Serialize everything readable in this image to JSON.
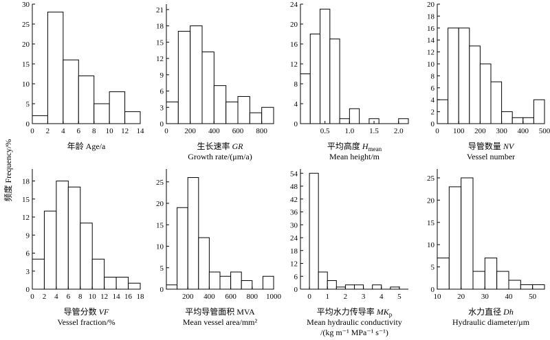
{
  "figure": {
    "y_axis_label": "频度 Frequency/%"
  },
  "chart_data": [
    {
      "type": "bar",
      "label_lines": [
        "年龄 Age/a"
      ],
      "bin_edges": [
        0,
        2,
        4,
        6,
        8,
        10,
        12,
        14
      ],
      "values": [
        2,
        28,
        16,
        12,
        5,
        8,
        3
      ],
      "xlim": [
        0,
        14
      ],
      "xticks": [
        0,
        2,
        4,
        6,
        8,
        10,
        12,
        14
      ],
      "ylim": [
        0,
        30
      ],
      "yticks": [
        0,
        5,
        10,
        15,
        20,
        25,
        30
      ]
    },
    {
      "type": "bar",
      "label_lines": [
        "生长速率 GR",
        "Growth rate/(μm/a)"
      ],
      "bin_edges": [
        0,
        100,
        200,
        300,
        400,
        500,
        600,
        700,
        800,
        900
      ],
      "values": [
        4,
        17,
        18,
        13.2,
        7,
        4,
        5,
        2,
        3
      ],
      "xlim": [
        0,
        900
      ],
      "xticks": [
        0,
        200,
        400,
        600,
        800
      ],
      "ylim": [
        0,
        22
      ],
      "yticks": [
        0,
        3,
        6,
        9,
        12,
        15,
        18,
        21
      ]
    },
    {
      "type": "bar",
      "label_lines": [
        "平均高度 Hmean",
        "Mean height/m"
      ],
      "bin_edges": [
        0,
        0.2,
        0.4,
        0.6,
        0.8,
        1.0,
        1.2,
        1.4,
        1.6,
        1.8,
        2.0,
        2.2
      ],
      "values": [
        10,
        18,
        23,
        17,
        1,
        3,
        0,
        1,
        0,
        0,
        1
      ],
      "xlim": [
        0,
        2.2
      ],
      "xticks": [
        0.5,
        1.0,
        1.5,
        2.0
      ],
      "ylim": [
        0,
        24
      ],
      "yticks": [
        0,
        4,
        8,
        12,
        16,
        20,
        24
      ]
    },
    {
      "type": "bar",
      "label_lines": [
        "导管数量 NV",
        "Vessel number"
      ],
      "bin_edges": [
        0,
        50,
        100,
        150,
        200,
        250,
        300,
        350,
        400,
        450,
        500
      ],
      "values": [
        4,
        16,
        16,
        13,
        10,
        7,
        2,
        1,
        1,
        4
      ],
      "xlim": [
        0,
        500
      ],
      "xticks": [
        0,
        100,
        200,
        300,
        400,
        500
      ],
      "ylim": [
        0,
        20
      ],
      "yticks": [
        0,
        2,
        4,
        6,
        8,
        10,
        12,
        14,
        16,
        18,
        20
      ]
    },
    {
      "type": "bar",
      "label_lines": [
        "导管分数 VF",
        "Vessel fraction/%"
      ],
      "bin_edges": [
        0,
        2,
        4,
        6,
        8,
        10,
        12,
        14,
        16,
        18
      ],
      "values": [
        5,
        13,
        18,
        17,
        11,
        5,
        2,
        2,
        1
      ],
      "xlim": [
        0,
        18
      ],
      "xticks": [
        0,
        2,
        4,
        6,
        8,
        10,
        12,
        14,
        16,
        18
      ],
      "ylim": [
        0,
        20
      ],
      "yticks": [
        0,
        3,
        6,
        9,
        12,
        15,
        18
      ]
    },
    {
      "type": "bar",
      "label_lines": [
        "平均导管面积 MVA",
        "Mean vessel area/mm²"
      ],
      "bin_edges": [
        0,
        100,
        200,
        300,
        400,
        500,
        600,
        700,
        800,
        900,
        1000
      ],
      "values": [
        1,
        19,
        26,
        12,
        4,
        3,
        4,
        2,
        0,
        3
      ],
      "xlim": [
        0,
        1000
      ],
      "xticks": [
        200,
        400,
        600,
        800,
        1000
      ],
      "ylim": [
        0,
        28
      ],
      "yticks": [
        0,
        5,
        10,
        15,
        20,
        25
      ]
    },
    {
      "type": "bar",
      "label_lines": [
        "平均水力传导率 MKp",
        "Mean hydraulic conductivity",
        "/(kg m⁻¹ MPa⁻¹ s⁻¹)"
      ],
      "bin_edges": [
        0,
        0.5,
        1.0,
        1.5,
        2.0,
        2.5,
        3.0,
        3.5,
        4.0,
        4.5,
        5.0
      ],
      "values": [
        54,
        8,
        4,
        1,
        2,
        2,
        0,
        2,
        0,
        1
      ],
      "xlim": [
        -0.5,
        5.5
      ],
      "xticks": [
        0,
        1,
        2,
        3,
        4,
        5
      ],
      "ylim": [
        0,
        56
      ],
      "yticks": [
        0,
        6,
        12,
        18,
        24,
        30,
        36,
        42,
        48,
        54
      ]
    },
    {
      "type": "bar",
      "label_lines": [
        "水力直径 Dh",
        "Hydraulic diameter/μm"
      ],
      "bin_edges": [
        10,
        15,
        20,
        25,
        30,
        35,
        40,
        45,
        50,
        55
      ],
      "values": [
        7,
        23,
        25,
        4,
        7,
        4,
        2,
        1,
        1
      ],
      "xlim": [
        10,
        55
      ],
      "xticks": [
        10,
        20,
        30,
        40,
        50
      ],
      "ylim": [
        0,
        27
      ],
      "yticks": [
        0,
        5,
        10,
        15,
        20,
        25
      ]
    }
  ]
}
